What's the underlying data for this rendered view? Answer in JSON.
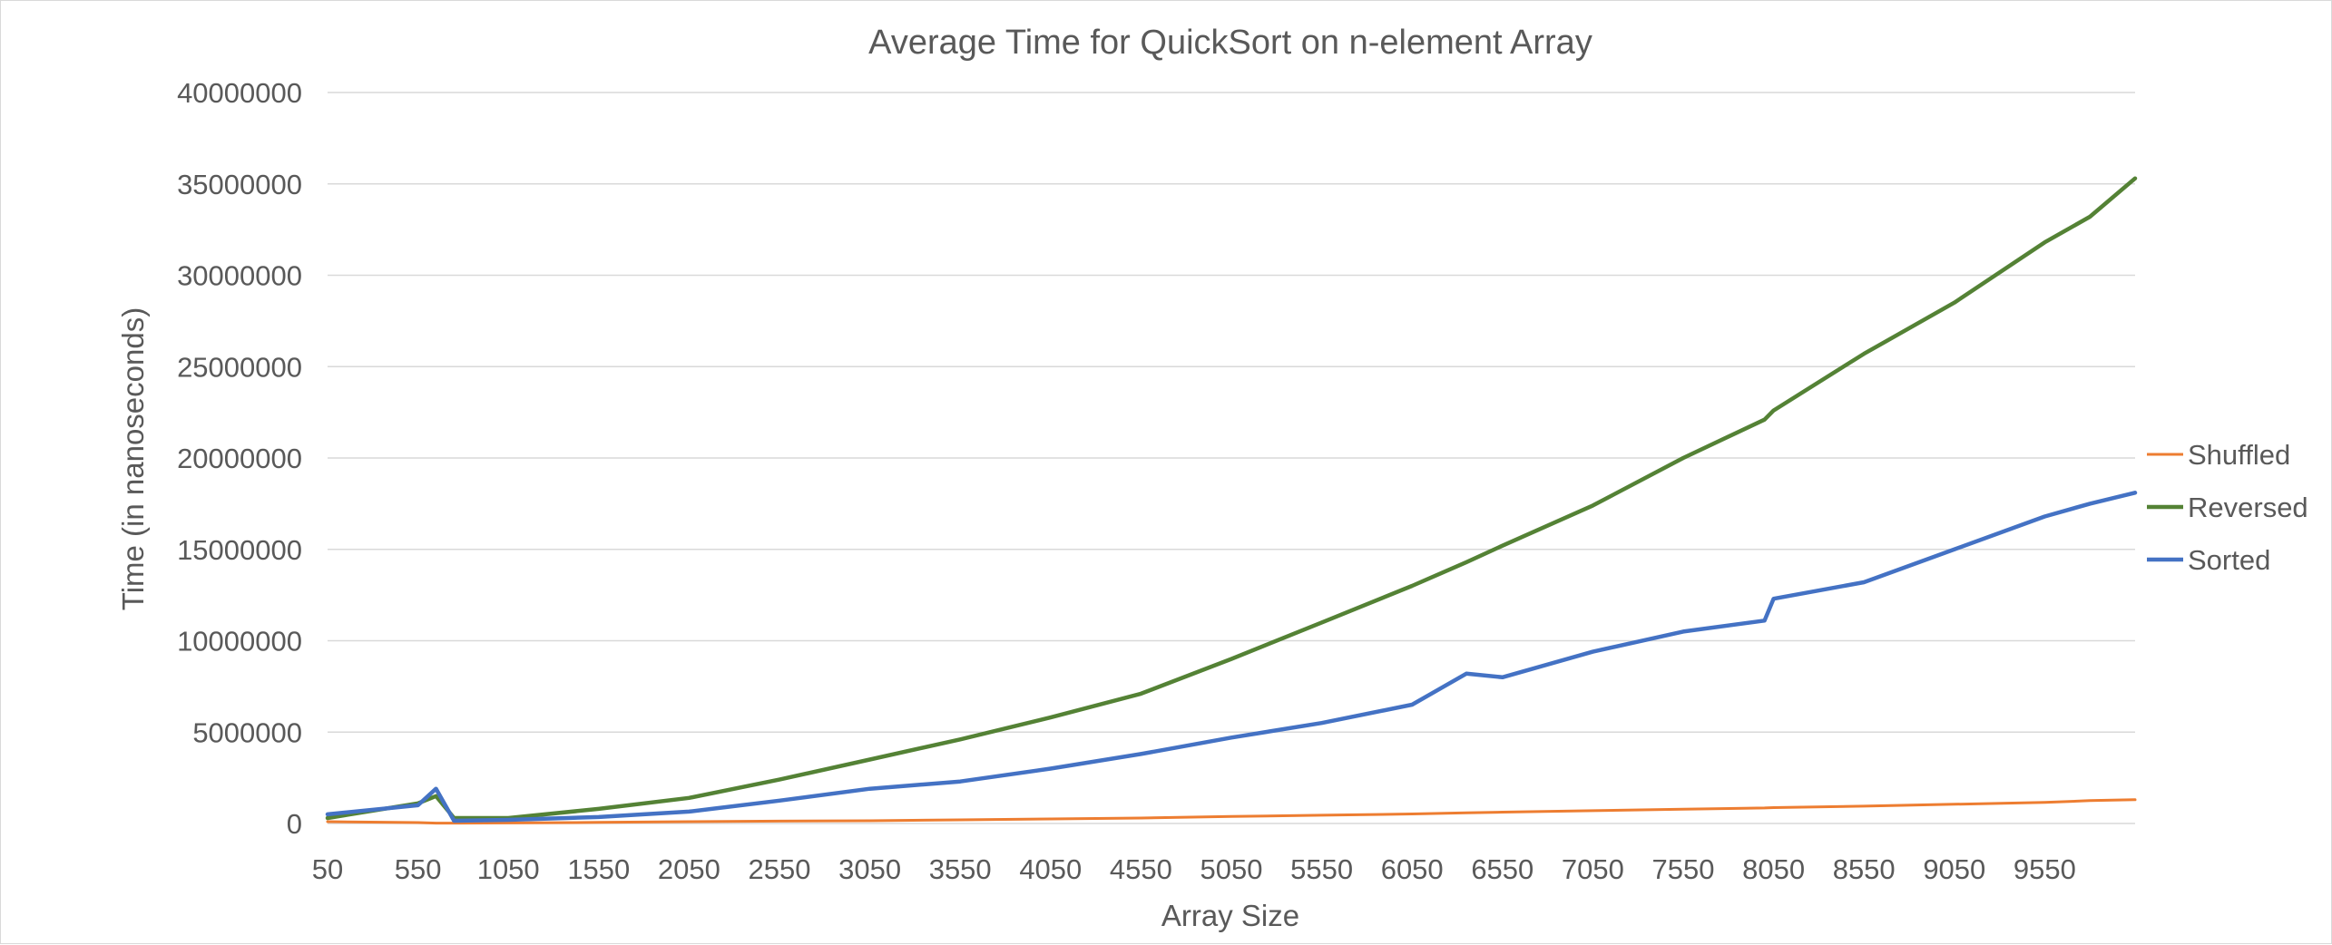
{
  "chart_data": {
    "type": "line",
    "title": "Average Time for QuickSort on n-element Array",
    "xlabel": "Array Size",
    "ylabel": "Time (in nanoseconds)",
    "ylim": [
      0,
      40000000
    ],
    "yticks": [
      "0",
      "5000000",
      "10000000",
      "15000000",
      "20000000",
      "25000000",
      "30000000",
      "35000000",
      "40000000"
    ],
    "xticks": [
      "50",
      "550",
      "1050",
      "1550",
      "2050",
      "2550",
      "3050",
      "3550",
      "4050",
      "4550",
      "5050",
      "5550",
      "6050",
      "6550",
      "7050",
      "7550",
      "8050",
      "8550",
      "9050",
      "9550"
    ],
    "grid": "horizontal",
    "legend_position": "right",
    "x": [
      50,
      550,
      650,
      750,
      1050,
      1550,
      2050,
      2550,
      3050,
      3550,
      4050,
      4550,
      5050,
      5550,
      6050,
      6350,
      6550,
      7050,
      7550,
      8000,
      8050,
      8550,
      9050,
      9550,
      9800,
      10050
    ],
    "series": [
      {
        "name": "Shuffled",
        "color": "#ED7D31",
        "values": [
          100000,
          50000,
          20000,
          20000,
          30000,
          60000,
          100000,
          130000,
          150000,
          200000,
          250000,
          300000,
          380000,
          450000,
          520000,
          580000,
          620000,
          700000,
          780000,
          850000,
          870000,
          950000,
          1050000,
          1150000,
          1250000,
          1300000
        ]
      },
      {
        "name": "Reversed",
        "color": "#548235",
        "values": [
          300000,
          1100000,
          1500000,
          300000,
          300000,
          800000,
          1400000,
          2400000,
          3500000,
          4600000,
          5800000,
          7100000,
          9000000,
          11000000,
          13000000,
          14300000,
          15200000,
          17400000,
          20000000,
          22100000,
          22600000,
          25700000,
          28500000,
          31800000,
          33200000,
          35300000
        ]
      },
      {
        "name": "Sorted",
        "color": "#4472C4",
        "values": [
          500000,
          1000000,
          1900000,
          150000,
          200000,
          350000,
          650000,
          1250000,
          1900000,
          2300000,
          3000000,
          3800000,
          4700000,
          5500000,
          6500000,
          8200000,
          8000000,
          9400000,
          10500000,
          11100000,
          12300000,
          13200000,
          15000000,
          16800000,
          17500000,
          18100000
        ]
      }
    ]
  }
}
